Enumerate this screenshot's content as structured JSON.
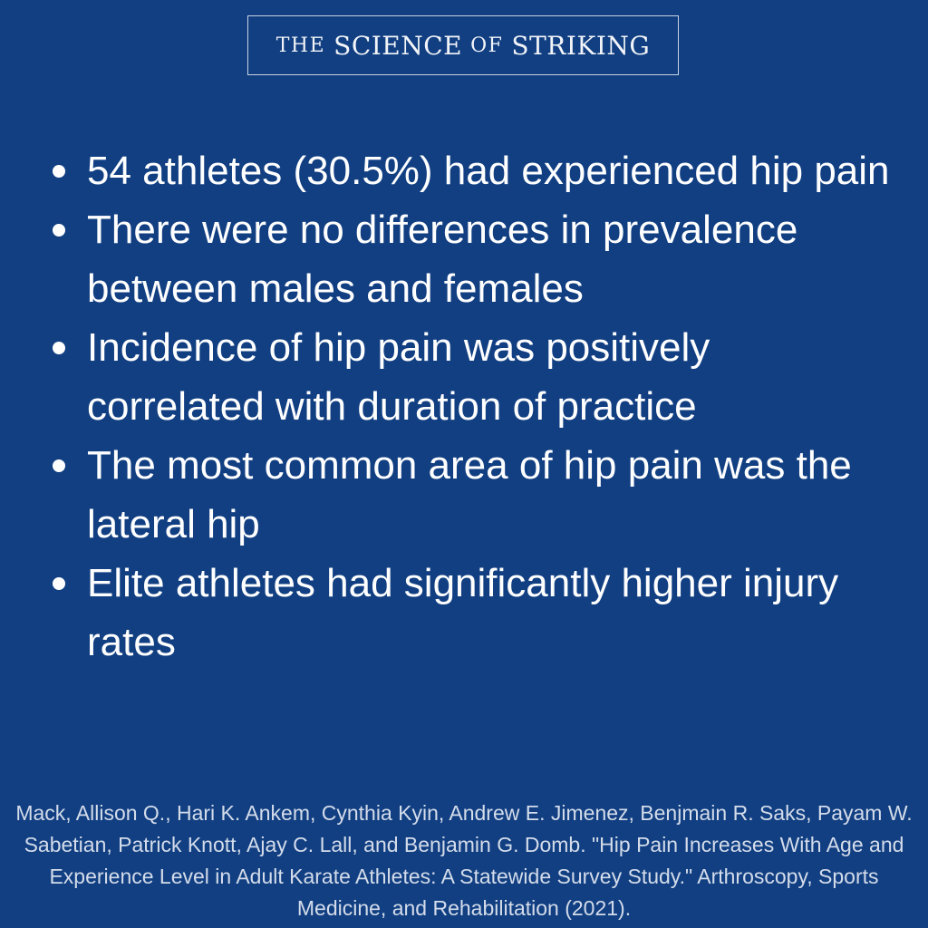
{
  "logo": {
    "word1": "The",
    "word2": "Science",
    "word3": "of",
    "word4": "Striking"
  },
  "bullets": [
    "54 athletes (30.5%) had experienced hip pain",
    "There were no differences in prevalence between males and females",
    "Incidence of hip pain was positively correlated with duration of practice",
    "The most common area of hip pain was the lateral hip",
    "Elite athletes had significantly higher injury rates"
  ],
  "citation": "Mack, Allison Q., Hari K. Ankem, Cynthia Kyin, Andrew E. Jimenez, Benjmain R. Saks, Payam W. Sabetian, Patrick Knott, Ajay C. Lall, and Benjamin G. Domb. \"Hip Pain Increases With Age and Experience Level in Adult Karate Athletes: A Statewide Survey Study.\" Arthroscopy, Sports Medicine, and Rehabilitation (2021).",
  "colors": {
    "background": "#113f82",
    "text": "#ffffff",
    "citation_text": "#d4dcea",
    "logo_border": "#c9d3e3"
  }
}
